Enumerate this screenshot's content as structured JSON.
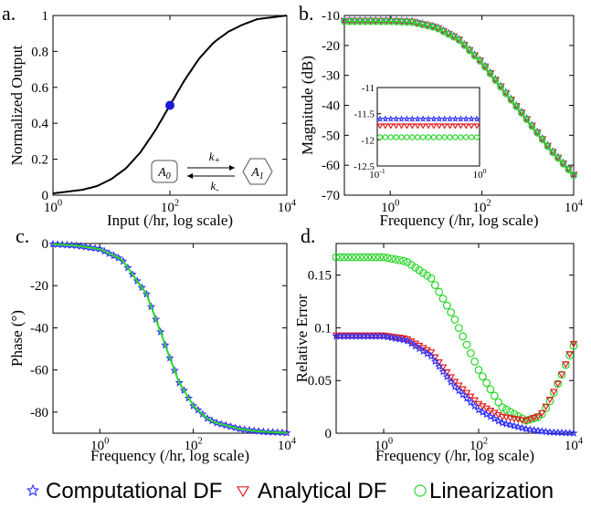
{
  "colors": {
    "computational": "#2d2dff",
    "analytical": "#e02020",
    "linearization": "#2ad62a",
    "curve": "#000000",
    "point": "#1a1ad8"
  },
  "legend": {
    "items": [
      {
        "label": "Computational DF",
        "marker": "star",
        "color": "#2d2dff"
      },
      {
        "label": "Analytical DF",
        "marker": "triangle-down",
        "color": "#e02020"
      },
      {
        "label": "Linearization",
        "marker": "circle",
        "color": "#2ad62a"
      }
    ]
  },
  "chart_data": [
    {
      "panel_label": "a.",
      "type": "line",
      "xlabel": "Input (/hr, log scale)",
      "ylabel": "Normalized Output",
      "xscale": "log",
      "xlim": [
        1,
        10000
      ],
      "ylim": [
        0,
        1
      ],
      "xticks": [
        "10^0",
        "10^2",
        "10^4"
      ],
      "yticks": [
        "0",
        "0.2",
        "0.4",
        "0.6",
        "0.8",
        "1"
      ],
      "series": [
        {
          "x": [
            1,
            1.78,
            3.16,
            5.62,
            10,
            17.8,
            31.6,
            56.2,
            100,
            178,
            316,
            562,
            1000,
            1780,
            3160,
            5620,
            10000
          ],
          "y": [
            0.01,
            0.02,
            0.03,
            0.05,
            0.09,
            0.15,
            0.24,
            0.36,
            0.5,
            0.64,
            0.76,
            0.85,
            0.91,
            0.95,
            0.98,
            0.99,
            1.0
          ]
        }
      ],
      "marker_point": {
        "x": 100,
        "y": 0.5
      },
      "annotation": {
        "left_state": "A_0",
        "right_state": "A_1",
        "forward_rate": "k_+",
        "reverse_rate": "k_-"
      }
    },
    {
      "panel_label": "b.",
      "type": "line",
      "xlabel": "Frequency (/hr, log scale)",
      "ylabel": "Magnitude (dB)",
      "xscale": "log",
      "xlim": [
        0.1,
        10000
      ],
      "ylim": [
        -70,
        -10
      ],
      "xticks": [
        "10^0",
        "10^2",
        "10^4"
      ],
      "yticks": [
        "-10",
        "-20",
        "-30",
        "-40",
        "-50",
        "-60",
        "-70"
      ],
      "series": [
        {
          "name": "Computational DF",
          "x": [
            0.1,
            1,
            3,
            10,
            30,
            100,
            300,
            1000,
            3000,
            10000
          ],
          "y": [
            -11.6,
            -11.6,
            -11.9,
            -13.7,
            -17.5,
            -25.5,
            -34.8,
            -44.8,
            -54.2,
            -63.0
          ]
        },
        {
          "name": "Analytical DF",
          "x": [
            0.1,
            1,
            3,
            10,
            30,
            100,
            300,
            1000,
            3000,
            10000
          ],
          "y": [
            -11.7,
            -11.7,
            -12.0,
            -13.8,
            -17.6,
            -25.6,
            -34.9,
            -44.9,
            -54.3,
            -63.1
          ]
        },
        {
          "name": "Linearization",
          "x": [
            0.1,
            1,
            3,
            10,
            30,
            100,
            300,
            1000,
            3000,
            10000
          ],
          "y": [
            -12.0,
            -12.0,
            -12.3,
            -14.1,
            -17.9,
            -25.9,
            -35.2,
            -45.2,
            -54.6,
            -63.4
          ]
        }
      ],
      "inset": {
        "xlim": [
          0.1,
          1
        ],
        "ylim": [
          -12.5,
          -11
        ],
        "xticks": [
          "10^-1",
          "10^0"
        ],
        "yticks": [
          "-11",
          "-11.5",
          "-12",
          "-12.5"
        ],
        "series": [
          {
            "name": "Computational DF",
            "y": -11.6
          },
          {
            "name": "Analytical DF",
            "y": -11.73
          },
          {
            "name": "Linearization",
            "y": -11.95
          }
        ]
      }
    },
    {
      "panel_label": "c.",
      "type": "line",
      "xlabel": "Frequency (/hr, log scale)",
      "ylabel": "Phase (°)",
      "xscale": "log",
      "xlim": [
        0.1,
        10000
      ],
      "ylim": [
        -90,
        0
      ],
      "xticks": [
        "10^0",
        "10^2",
        "10^4"
      ],
      "yticks": [
        "0",
        "-20",
        "-40",
        "-60",
        "-80"
      ],
      "series": [
        {
          "name": "Computational DF",
          "x": [
            0.1,
            0.3,
            1,
            3,
            10,
            20,
            30,
            50,
            100,
            200,
            300,
            1000,
            3000,
            10000
          ],
          "y": [
            -0.3,
            -0.9,
            -2.6,
            -7.7,
            -24,
            -42,
            -53,
            -66,
            -77,
            -83,
            -85,
            -88,
            -89.3,
            -89.8
          ]
        },
        {
          "name": "Analytical DF",
          "x": [
            0.1,
            0.3,
            1,
            3,
            10,
            20,
            30,
            50,
            100,
            200,
            300,
            1000,
            3000,
            10000
          ],
          "y": [
            -0.3,
            -0.9,
            -2.6,
            -7.7,
            -24,
            -42,
            -53,
            -66,
            -77,
            -83,
            -85,
            -88,
            -89.3,
            -89.8
          ]
        },
        {
          "name": "Linearization",
          "x": [
            0.1,
            0.3,
            1,
            3,
            10,
            20,
            30,
            50,
            100,
            200,
            300,
            1000,
            3000,
            10000
          ],
          "y": [
            -0.3,
            -0.9,
            -2.6,
            -7.7,
            -24,
            -42,
            -53,
            -66,
            -77,
            -83,
            -85,
            -88,
            -89.3,
            -89.8
          ]
        }
      ]
    },
    {
      "panel_label": "d.",
      "type": "scatter",
      "xlabel": "Frequency (/hr, log scale)",
      "ylabel": "Relative Error",
      "xscale": "log",
      "xlim": [
        0.1,
        10000
      ],
      "ylim": [
        0,
        0.18
      ],
      "xticks": [
        "10^0",
        "10^2",
        "10^4"
      ],
      "yticks": [
        "0",
        "0.05",
        "0.1",
        "0.15"
      ],
      "series": [
        {
          "name": "Computational DF",
          "x": [
            0.1,
            1,
            3,
            10,
            30,
            100,
            300,
            1000,
            3000,
            10000
          ],
          "y": [
            0.092,
            0.092,
            0.088,
            0.073,
            0.045,
            0.022,
            0.01,
            0.004,
            0.001,
            0.0
          ]
        },
        {
          "name": "Analytical DF",
          "x": [
            0.1,
            1,
            3,
            10,
            30,
            100,
            300,
            1000,
            2000,
            3000,
            5000,
            10000
          ],
          "y": [
            0.093,
            0.093,
            0.09,
            0.077,
            0.05,
            0.028,
            0.016,
            0.012,
            0.017,
            0.03,
            0.05,
            0.085
          ]
        },
        {
          "name": "Linearization",
          "x": [
            0.1,
            1,
            3,
            10,
            30,
            100,
            300,
            1000,
            2000,
            3000,
            5000,
            10000
          ],
          "y": [
            0.167,
            0.167,
            0.163,
            0.147,
            0.11,
            0.06,
            0.025,
            0.012,
            0.016,
            0.028,
            0.05,
            0.083
          ]
        }
      ]
    }
  ]
}
